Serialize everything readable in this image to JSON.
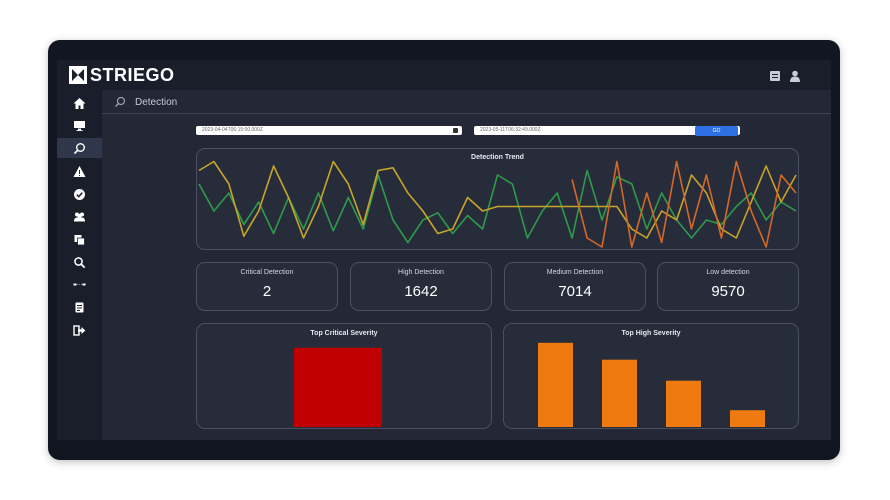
{
  "app": {
    "brand": "STRIEGO",
    "page_title": "Detection"
  },
  "sidebar": {
    "items": [
      {
        "icon": "home-icon",
        "name": "sidebar-item-home"
      },
      {
        "icon": "monitor-icon",
        "name": "sidebar-item-monitor"
      },
      {
        "icon": "search-icon",
        "name": "sidebar-item-detection",
        "active": true
      },
      {
        "icon": "warning-icon",
        "name": "sidebar-item-alerts"
      },
      {
        "icon": "check-circle-icon",
        "name": "sidebar-item-resolved"
      },
      {
        "icon": "users-icon",
        "name": "sidebar-item-users"
      },
      {
        "icon": "copy-icon",
        "name": "sidebar-item-documents"
      },
      {
        "icon": "magnifier-icon",
        "name": "sidebar-item-search"
      },
      {
        "icon": "connection-icon",
        "name": "sidebar-item-network"
      },
      {
        "icon": "notes-icon",
        "name": "sidebar-item-reports"
      },
      {
        "icon": "logout-icon",
        "name": "sidebar-item-logout"
      }
    ]
  },
  "filters": {
    "start_date": "2023-04-04T06:15:00.000Z",
    "end_date": "2023-05-11T06:32:49.000Z",
    "go_label": "GO"
  },
  "colors": {
    "critical": "#c00000",
    "high": "#ef7a10",
    "line_green": "#2f9a4a",
    "line_yellow": "#c7a42a",
    "line_orange": "#d4682a"
  },
  "stats": [
    {
      "label": "Critical Detection",
      "value": "2"
    },
    {
      "label": "High Detection",
      "value": "1642"
    },
    {
      "label": "Medium Detection",
      "value": "7014"
    },
    {
      "label": "Low detection",
      "value": "9570"
    }
  ],
  "chart_data": [
    {
      "type": "line",
      "title": "Detection Trend",
      "x": [
        1,
        2,
        3,
        4,
        5,
        6,
        7,
        8,
        9,
        10,
        11,
        12,
        13,
        14,
        15,
        16,
        17,
        18,
        19,
        20,
        21,
        22,
        23,
        24,
        25,
        26,
        27,
        28,
        29,
        30,
        31,
        32,
        33,
        34,
        35,
        36,
        37,
        38,
        39,
        40,
        41
      ],
      "ylim": [
        0,
        100
      ],
      "series": [
        {
          "color": "#2f9a4a",
          "values": [
            70,
            40,
            60,
            25,
            50,
            15,
            55,
            20,
            60,
            18,
            55,
            20,
            80,
            30,
            5,
            30,
            38,
            15,
            35,
            20,
            80,
            70,
            10,
            40,
            60,
            10,
            85,
            30,
            78,
            70,
            20,
            60,
            30,
            10,
            30,
            25,
            45,
            60,
            30,
            50,
            40
          ]
        },
        {
          "color": "#c7a42a",
          "values": [
            85,
            95,
            70,
            12,
            40,
            90,
            55,
            10,
            45,
            95,
            70,
            25,
            85,
            88,
            60,
            40,
            15,
            20,
            55,
            40,
            45,
            45,
            45,
            45,
            45,
            45,
            45,
            45,
            45,
            20,
            10,
            40,
            30,
            80,
            60,
            20,
            10,
            50,
            90,
            50,
            80
          ]
        },
        {
          "color": "#d4682a",
          "values": [
            null,
            null,
            null,
            null,
            null,
            null,
            null,
            null,
            null,
            null,
            null,
            null,
            null,
            null,
            null,
            null,
            null,
            null,
            null,
            null,
            null,
            null,
            null,
            null,
            null,
            75,
            10,
            0,
            95,
            0,
            60,
            5,
            95,
            20,
            80,
            10,
            95,
            40,
            0,
            80,
            60
          ]
        }
      ]
    },
    {
      "type": "bar",
      "title": "Top Critical Severity",
      "categories": [
        ""
      ],
      "values": [
        100
      ],
      "color": "#c00000",
      "ylim": [
        0,
        130
      ]
    },
    {
      "type": "bar",
      "title": "Top High Severity",
      "categories": [
        "",
        "",
        "",
        ""
      ],
      "values": [
        100,
        80,
        55,
        20
      ],
      "color": "#ef7a10",
      "ylim": [
        0,
        120
      ]
    }
  ]
}
